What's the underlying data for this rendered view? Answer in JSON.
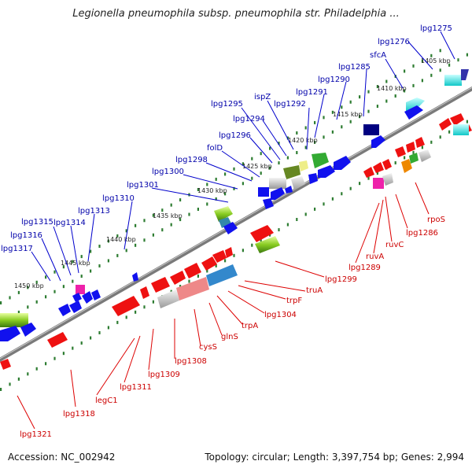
{
  "title": "Legionella pneumophila subsp. pneumophila str. Philadelphia ...",
  "footer": {
    "accession": "Accession: NC_002942",
    "info": "Topology: circular; Length: 3,397,754 bp; Genes: 2,994"
  },
  "ticks": [
    "1405 kbp",
    "1410 kbp",
    "1415 kbp",
    "1420 kbp",
    "1425 kbp",
    "1430 kbp",
    "1435 kbp",
    "1440 kbp",
    "1445 kbp",
    "1450 kbp"
  ],
  "genes_top": [
    "lpg1275",
    "lpg1276",
    "sfcA",
    "lpg1285",
    "lpg1290",
    "lpg1291",
    "lpg1292",
    "ispZ",
    "lpg1295",
    "lpg1294",
    "lpg1296",
    "folD",
    "lpg1298",
    "lpg1300",
    "lpg1301",
    "lpg1310",
    "lpg1313",
    "lpg1314",
    "lpg1315",
    "lpg1316",
    "lpg1317"
  ],
  "genes_bottom": [
    "rpoS",
    "lpg1286",
    "ruvC",
    "ruvA",
    "lpg1289",
    "lpg1299",
    "truA",
    "trpF",
    "lpg1304",
    "trpA",
    "glnS",
    "cysS",
    "lpg1308",
    "lpg1309",
    "lpg1311",
    "legC1",
    "lpg1318",
    "lpg1321"
  ],
  "colors": {
    "top_label": "#0000aa",
    "bottom_label": "#cc0000",
    "tick": "#2e7d32",
    "backbone": "#808080"
  }
}
